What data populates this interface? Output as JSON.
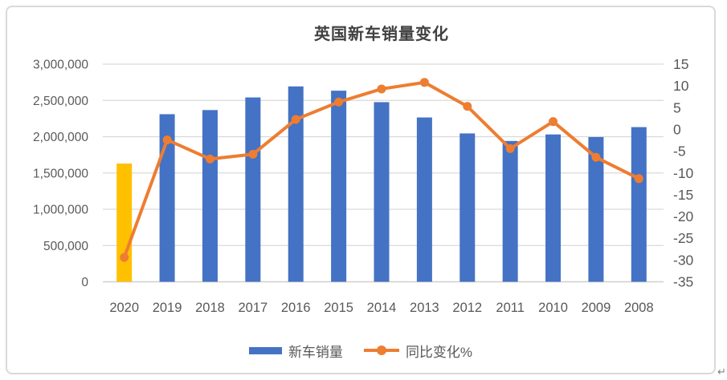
{
  "frame": {
    "return_mark": "↵"
  },
  "chart_data": {
    "type": "combo-bar-line",
    "title": "英国新车销量变化",
    "categories": [
      "2020",
      "2019",
      "2018",
      "2017",
      "2016",
      "2015",
      "2014",
      "2013",
      "2012",
      "2011",
      "2010",
      "2009",
      "2008"
    ],
    "series": [
      {
        "name": "新车销量",
        "type": "bar",
        "axis": "left",
        "color": "#4472C4",
        "highlight": {
          "index": 0,
          "color": "#FFC000"
        },
        "values": [
          1630000,
          2310000,
          2367000,
          2541000,
          2693000,
          2634000,
          2476000,
          2265000,
          2045000,
          1941000,
          2031000,
          1995000,
          2132000
        ]
      },
      {
        "name": "同比变化%",
        "type": "line",
        "axis": "right",
        "color": "#ED7D31",
        "values": [
          -29.4,
          -2.4,
          -6.8,
          -5.7,
          2.3,
          6.3,
          9.3,
          10.8,
          5.3,
          -4.4,
          1.8,
          -6.4,
          -11.3
        ]
      }
    ],
    "left_axis": {
      "min": 0,
      "max": 3000000,
      "tick_labels": [
        "3,000,000",
        "2,500,000",
        "2,000,000",
        "1,500,000",
        "1,000,000",
        "500,000",
        "0"
      ]
    },
    "right_axis": {
      "min": -35,
      "max": 15,
      "tick_labels": [
        "15",
        "10",
        "5",
        "0",
        "-5",
        "-10",
        "-15",
        "-20",
        "-25",
        "-30",
        "-35"
      ]
    },
    "grid": true,
    "legend_position": "bottom",
    "colors": {
      "grid": "#d9d9d9",
      "baseline": "#cfcfcf",
      "axis_text": "#595959",
      "title_text": "#404040"
    }
  }
}
